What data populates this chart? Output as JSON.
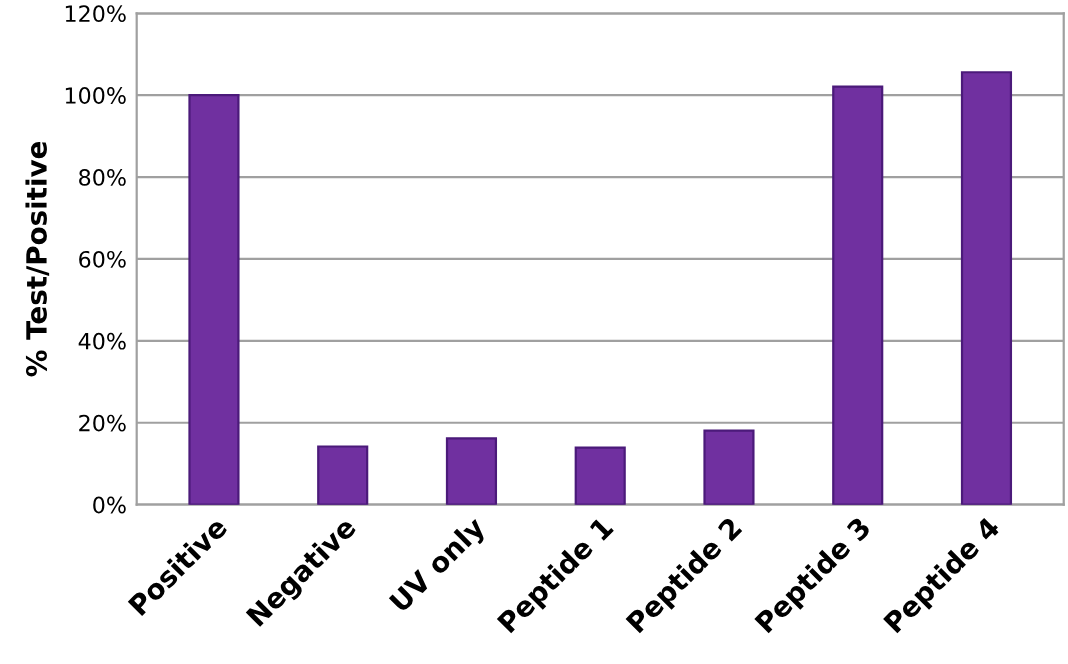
{
  "chart_data": {
    "type": "bar",
    "ylabel": "% Test/Positive",
    "categories": [
      "Positive",
      "Negative",
      "UV only",
      "Peptide 1",
      "Peptide 2",
      "Peptide 3",
      "Peptide 4"
    ],
    "values": [
      100,
      14.2,
      16.2,
      13.9,
      18.1,
      102.1,
      105.6
    ],
    "color": "#7030a0",
    "ylim": [
      0,
      120
    ],
    "yticks": [
      {
        "value": 0,
        "label": "0%"
      },
      {
        "value": 20,
        "label": "20%"
      },
      {
        "value": 40,
        "label": "40%"
      },
      {
        "value": 60,
        "label": "60%"
      },
      {
        "value": 80,
        "label": "80%"
      },
      {
        "value": 100,
        "label": "100%"
      },
      {
        "value": 120,
        "label": "120%"
      }
    ],
    "grid": "y",
    "legend": false
  }
}
